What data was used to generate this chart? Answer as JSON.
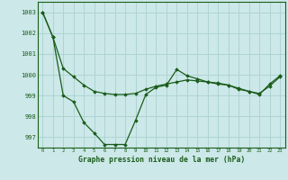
{
  "x": [
    0,
    1,
    2,
    3,
    4,
    5,
    6,
    7,
    8,
    9,
    10,
    11,
    12,
    13,
    14,
    15,
    16,
    17,
    18,
    19,
    20,
    21,
    22,
    23
  ],
  "line1": [
    1003.0,
    1001.8,
    1000.3,
    999.9,
    999.5,
    999.2,
    999.1,
    999.05,
    999.05,
    999.1,
    999.3,
    999.45,
    999.55,
    999.65,
    999.75,
    999.7,
    999.65,
    999.6,
    999.5,
    999.3,
    999.2,
    999.1,
    999.45,
    999.9
  ],
  "line2": [
    1003.0,
    1001.8,
    999.0,
    998.7,
    997.7,
    997.2,
    996.65,
    996.65,
    996.65,
    997.8,
    999.05,
    999.4,
    999.5,
    1000.25,
    999.95,
    999.8,
    999.65,
    999.55,
    999.5,
    999.35,
    999.2,
    999.05,
    999.55,
    999.95
  ],
  "background_color": "#cce8e8",
  "grid_color": "#afd4d4",
  "line_color": "#1a5c1a",
  "xlabel": "Graphe pression niveau de la mer (hPa)",
  "ylim": [
    996.5,
    1003.5
  ],
  "xlim": [
    -0.5,
    23.5
  ],
  "yticks": [
    997,
    998,
    999,
    1000,
    1001,
    1002,
    1003
  ],
  "xticks": [
    0,
    1,
    2,
    3,
    4,
    5,
    6,
    7,
    8,
    9,
    10,
    11,
    12,
    13,
    14,
    15,
    16,
    17,
    18,
    19,
    20,
    21,
    22,
    23
  ]
}
